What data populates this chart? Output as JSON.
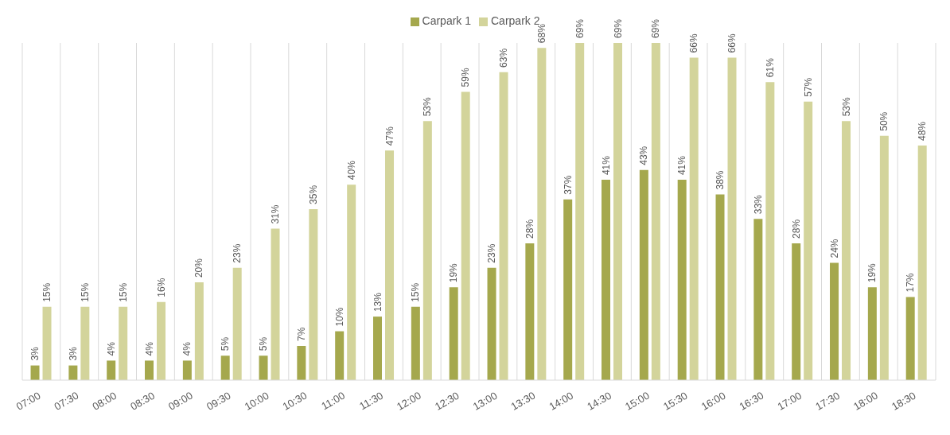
{
  "chart_data": {
    "type": "bar",
    "categories": [
      "07:00",
      "07:30",
      "08:00",
      "08:30",
      "09:00",
      "09:30",
      "10:00",
      "10:30",
      "11:00",
      "11:30",
      "12:00",
      "12:30",
      "13:00",
      "13:30",
      "14:00",
      "14:30",
      "15:00",
      "15:30",
      "16:00",
      "16:30",
      "17:00",
      "17:30",
      "18:00",
      "18:30"
    ],
    "series": [
      {
        "name": "Carpark 1",
        "color": "#a5a84d",
        "values": [
          3,
          3,
          4,
          4,
          4,
          5,
          5,
          7,
          10,
          13,
          15,
          19,
          23,
          28,
          37,
          41,
          43,
          41,
          38,
          33,
          28,
          24,
          19,
          17
        ],
        "value_labels": [
          "3%",
          "3%",
          "4%",
          "4%",
          "4%",
          "5%",
          "5%",
          "7%",
          "10%",
          "13%",
          "15%",
          "19%",
          "23%",
          "28%",
          "37%",
          "41%",
          "43%",
          "41%",
          "38%",
          "33%",
          "28%",
          "24%",
          "19%",
          "17%"
        ]
      },
      {
        "name": "Carpark 2",
        "color": "#d3d49b",
        "values": [
          15,
          15,
          15,
          16,
          20,
          23,
          31,
          35,
          40,
          47,
          53,
          59,
          63,
          68,
          69,
          69,
          69,
          66,
          66,
          61,
          57,
          53,
          50,
          48
        ],
        "value_labels": [
          "15%",
          "15%",
          "15%",
          "16%",
          "20%",
          "23%",
          "31%",
          "35%",
          "40%",
          "47%",
          "53%",
          "59%",
          "63%",
          "68%",
          "69%",
          "69%",
          "69%",
          "66%",
          "66%",
          "61%",
          "57%",
          "53%",
          "50%",
          "48%"
        ]
      }
    ],
    "grid": "x",
    "legend": "top"
  }
}
